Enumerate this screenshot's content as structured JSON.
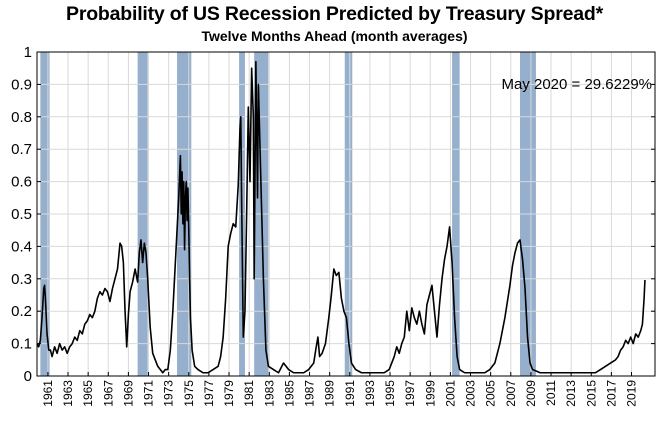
{
  "chart_data": {
    "type": "line",
    "title": "Probability of US Recession Predicted by Treasury Spread*",
    "subtitle": "Twelve Months Ahead (month averages)",
    "xlabel": "",
    "ylabel": "",
    "xlim": [
      "1959-12",
      "2021-05"
    ],
    "ylim": [
      0,
      1
    ],
    "grid": true,
    "legend": "none",
    "annotation": "May 2020 = 29.6229%",
    "colors": {
      "line": "#000000",
      "recession_band": "#96afcc",
      "grid": "#d9d9d9"
    },
    "y_ticks": [
      0,
      0.1,
      0.2,
      0.3,
      0.4,
      0.5,
      0.6,
      0.7,
      0.8,
      0.9,
      1
    ],
    "y_tick_labels": [
      "0",
      "0.1",
      "0.2",
      "0.3",
      "0.4",
      "0.5",
      "0.6",
      "0.7",
      "0.8",
      "0.9",
      "1"
    ],
    "x_tick_labels": [
      "1961",
      "1963",
      "1965",
      "1967",
      "1969",
      "1971",
      "1973",
      "1975",
      "1977",
      "1979",
      "1981",
      "1983",
      "1985",
      "1987",
      "1989",
      "1991",
      "1993",
      "1995",
      "1997",
      "1999",
      "2001",
      "2003",
      "2005",
      "2007",
      "2009",
      "2011",
      "2013",
      "2015",
      "2017",
      "2019"
    ],
    "recessions": [
      {
        "start": "1960-04",
        "end": "1961-02"
      },
      {
        "start": "1969-12",
        "end": "1970-11"
      },
      {
        "start": "1973-11",
        "end": "1975-03"
      },
      {
        "start": "1980-01",
        "end": "1980-07"
      },
      {
        "start": "1981-07",
        "end": "1982-11"
      },
      {
        "start": "1990-07",
        "end": "1991-03"
      },
      {
        "start": "2001-03",
        "end": "2001-11"
      },
      {
        "start": "2007-12",
        "end": "2009-06"
      }
    ],
    "series": [
      {
        "name": "",
        "points": [
          [
            "1959-12",
            0.1
          ],
          [
            "1960-02",
            0.09
          ],
          [
            "1960-04",
            0.11
          ],
          [
            "1960-06",
            0.18
          ],
          [
            "1960-08",
            0.27
          ],
          [
            "1960-09",
            0.28
          ],
          [
            "1960-10",
            0.24
          ],
          [
            "1960-12",
            0.13
          ],
          [
            "1961-02",
            0.08
          ],
          [
            "1961-04",
            0.08
          ],
          [
            "1961-06",
            0.06
          ],
          [
            "1961-09",
            0.09
          ],
          [
            "1961-12",
            0.07
          ],
          [
            "1962-03",
            0.1
          ],
          [
            "1962-06",
            0.08
          ],
          [
            "1962-09",
            0.09
          ],
          [
            "1962-12",
            0.07
          ],
          [
            "1963-03",
            0.09
          ],
          [
            "1963-06",
            0.1
          ],
          [
            "1963-09",
            0.12
          ],
          [
            "1963-12",
            0.11
          ],
          [
            "1964-03",
            0.14
          ],
          [
            "1964-06",
            0.13
          ],
          [
            "1964-09",
            0.16
          ],
          [
            "1964-12",
            0.17
          ],
          [
            "1965-03",
            0.19
          ],
          [
            "1965-06",
            0.18
          ],
          [
            "1965-09",
            0.2
          ],
          [
            "1965-12",
            0.24
          ],
          [
            "1966-03",
            0.26
          ],
          [
            "1966-06",
            0.25
          ],
          [
            "1966-09",
            0.27
          ],
          [
            "1966-12",
            0.26
          ],
          [
            "1967-03",
            0.23
          ],
          [
            "1967-06",
            0.27
          ],
          [
            "1967-09",
            0.3
          ],
          [
            "1967-12",
            0.33
          ],
          [
            "1968-03",
            0.41
          ],
          [
            "1968-05",
            0.4
          ],
          [
            "1968-07",
            0.35
          ],
          [
            "1968-09",
            0.2
          ],
          [
            "1968-11",
            0.09
          ],
          [
            "1969-01",
            0.19
          ],
          [
            "1969-03",
            0.26
          ],
          [
            "1969-06",
            0.29
          ],
          [
            "1969-09",
            0.33
          ],
          [
            "1969-12",
            0.29
          ],
          [
            "1970-02",
            0.38
          ],
          [
            "1970-04",
            0.42
          ],
          [
            "1970-06",
            0.35
          ],
          [
            "1970-08",
            0.41
          ],
          [
            "1970-10",
            0.38
          ],
          [
            "1970-12",
            0.3
          ],
          [
            "1971-03",
            0.15
          ],
          [
            "1971-06",
            0.07
          ],
          [
            "1971-09",
            0.05
          ],
          [
            "1971-12",
            0.03
          ],
          [
            "1972-03",
            0.02
          ],
          [
            "1972-06",
            0.01
          ],
          [
            "1972-09",
            0.02
          ],
          [
            "1972-12",
            0.02
          ],
          [
            "1973-03",
            0.08
          ],
          [
            "1973-06",
            0.2
          ],
          [
            "1973-09",
            0.35
          ],
          [
            "1973-11",
            0.45
          ],
          [
            "1974-01",
            0.55
          ],
          [
            "1974-03",
            0.68
          ],
          [
            "1974-04",
            0.5
          ],
          [
            "1974-05",
            0.63
          ],
          [
            "1974-06",
            0.47
          ],
          [
            "1974-07",
            0.6
          ],
          [
            "1974-08",
            0.39
          ],
          [
            "1974-09",
            0.55
          ],
          [
            "1974-10",
            0.6
          ],
          [
            "1974-11",
            0.48
          ],
          [
            "1974-12",
            0.58
          ],
          [
            "1975-01",
            0.45
          ],
          [
            "1975-02",
            0.3
          ],
          [
            "1975-03",
            0.18
          ],
          [
            "1975-05",
            0.08
          ],
          [
            "1975-08",
            0.03
          ],
          [
            "1975-12",
            0.02
          ],
          [
            "1976-06",
            0.01
          ],
          [
            "1976-12",
            0.01
          ],
          [
            "1977-06",
            0.02
          ],
          [
            "1977-12",
            0.03
          ],
          [
            "1978-03",
            0.06
          ],
          [
            "1978-06",
            0.12
          ],
          [
            "1978-09",
            0.24
          ],
          [
            "1978-12",
            0.4
          ],
          [
            "1979-03",
            0.44
          ],
          [
            "1979-06",
            0.47
          ],
          [
            "1979-09",
            0.46
          ],
          [
            "1979-12",
            0.59
          ],
          [
            "1980-02",
            0.76
          ],
          [
            "1980-03",
            0.8
          ],
          [
            "1980-04",
            0.55
          ],
          [
            "1980-06",
            0.12
          ],
          [
            "1980-08",
            0.2
          ],
          [
            "1980-10",
            0.5
          ],
          [
            "1980-12",
            0.83
          ],
          [
            "1981-02",
            0.6
          ],
          [
            "1981-04",
            0.95
          ],
          [
            "1981-06",
            0.8
          ],
          [
            "1981-07",
            0.3
          ],
          [
            "1981-09",
            0.97
          ],
          [
            "1981-11",
            0.55
          ],
          [
            "1981-12",
            0.9
          ],
          [
            "1982-03",
            0.6
          ],
          [
            "1982-06",
            0.3
          ],
          [
            "1982-09",
            0.08
          ],
          [
            "1982-12",
            0.03
          ],
          [
            "1983-06",
            0.02
          ],
          [
            "1983-12",
            0.01
          ],
          [
            "1984-06",
            0.04
          ],
          [
            "1984-12",
            0.02
          ],
          [
            "1985-06",
            0.01
          ],
          [
            "1985-12",
            0.01
          ],
          [
            "1986-06",
            0.01
          ],
          [
            "1986-12",
            0.02
          ],
          [
            "1987-06",
            0.04
          ],
          [
            "1987-09",
            0.09
          ],
          [
            "1987-11",
            0.12
          ],
          [
            "1988-01",
            0.06
          ],
          [
            "1988-04",
            0.07
          ],
          [
            "1988-08",
            0.1
          ],
          [
            "1988-12",
            0.18
          ],
          [
            "1989-03",
            0.25
          ],
          [
            "1989-06",
            0.33
          ],
          [
            "1989-09",
            0.31
          ],
          [
            "1989-12",
            0.32
          ],
          [
            "1990-03",
            0.24
          ],
          [
            "1990-06",
            0.2
          ],
          [
            "1990-09",
            0.18
          ],
          [
            "1990-12",
            0.1
          ],
          [
            "1991-03",
            0.04
          ],
          [
            "1991-08",
            0.02
          ],
          [
            "1992-03",
            0.01
          ],
          [
            "1993-06",
            0.01
          ],
          [
            "1993-12",
            0.01
          ],
          [
            "1994-06",
            0.01
          ],
          [
            "1994-12",
            0.02
          ],
          [
            "1995-03",
            0.04
          ],
          [
            "1995-06",
            0.06
          ],
          [
            "1995-09",
            0.09
          ],
          [
            "1995-12",
            0.07
          ],
          [
            "1996-03",
            0.1
          ],
          [
            "1996-06",
            0.12
          ],
          [
            "1996-09",
            0.2
          ],
          [
            "1996-12",
            0.14
          ],
          [
            "1997-03",
            0.21
          ],
          [
            "1997-06",
            0.18
          ],
          [
            "1997-09",
            0.16
          ],
          [
            "1997-12",
            0.2
          ],
          [
            "1998-03",
            0.16
          ],
          [
            "1998-06",
            0.13
          ],
          [
            "1998-09",
            0.22
          ],
          [
            "1998-12",
            0.25
          ],
          [
            "1999-03",
            0.28
          ],
          [
            "1999-06",
            0.2
          ],
          [
            "1999-09",
            0.12
          ],
          [
            "1999-12",
            0.22
          ],
          [
            "2000-03",
            0.3
          ],
          [
            "2000-06",
            0.36
          ],
          [
            "2000-09",
            0.4
          ],
          [
            "2000-12",
            0.46
          ],
          [
            "2001-03",
            0.35
          ],
          [
            "2001-06",
            0.18
          ],
          [
            "2001-09",
            0.06
          ],
          [
            "2001-12",
            0.02
          ],
          [
            "2002-06",
            0.01
          ],
          [
            "2003-06",
            0.01
          ],
          [
            "2004-06",
            0.01
          ],
          [
            "2004-12",
            0.02
          ],
          [
            "2005-06",
            0.04
          ],
          [
            "2005-12",
            0.1
          ],
          [
            "2006-06",
            0.18
          ],
          [
            "2006-12",
            0.28
          ],
          [
            "2007-03",
            0.34
          ],
          [
            "2007-06",
            0.38
          ],
          [
            "2007-09",
            0.41
          ],
          [
            "2007-12",
            0.42
          ],
          [
            "2008-03",
            0.36
          ],
          [
            "2008-06",
            0.27
          ],
          [
            "2008-09",
            0.12
          ],
          [
            "2008-12",
            0.04
          ],
          [
            "2009-03",
            0.02
          ],
          [
            "2009-12",
            0.01
          ],
          [
            "2011-06",
            0.01
          ],
          [
            "2012-12",
            0.01
          ],
          [
            "2013-06",
            0.01
          ],
          [
            "2014-06",
            0.01
          ],
          [
            "2015-06",
            0.01
          ],
          [
            "2015-12",
            0.02
          ],
          [
            "2016-06",
            0.03
          ],
          [
            "2016-12",
            0.04
          ],
          [
            "2017-06",
            0.05
          ],
          [
            "2017-09",
            0.06
          ],
          [
            "2017-12",
            0.08
          ],
          [
            "2018-03",
            0.09
          ],
          [
            "2018-06",
            0.11
          ],
          [
            "2018-09",
            0.1
          ],
          [
            "2018-12",
            0.12
          ],
          [
            "2019-03",
            0.1
          ],
          [
            "2019-06",
            0.13
          ],
          [
            "2019-09",
            0.12
          ],
          [
            "2019-12",
            0.14
          ],
          [
            "2020-02",
            0.16
          ],
          [
            "2020-04",
            0.24
          ],
          [
            "2020-05",
            0.296229
          ]
        ]
      }
    ]
  }
}
